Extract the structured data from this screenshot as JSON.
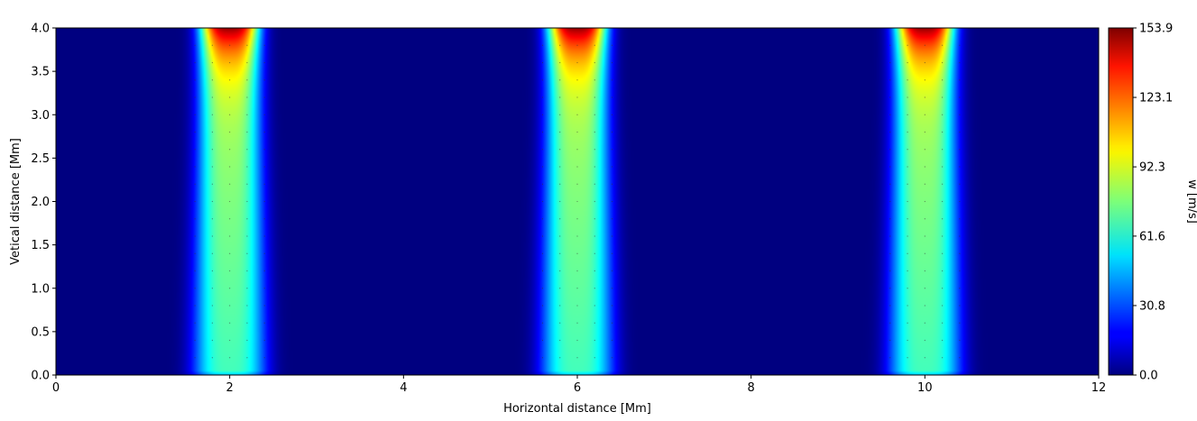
{
  "chart_data": {
    "type": "heatmap",
    "title": "",
    "xlabel": "Horizontal distance [Mm]",
    "ylabel": "Vetical distance [Mm]",
    "xlim": [
      0,
      12
    ],
    "ylim": [
      0,
      4
    ],
    "x_ticks": [
      "0",
      "2",
      "4",
      "6",
      "8",
      "10",
      "12"
    ],
    "y_ticks": [
      "0.0",
      "0.5",
      "1.0",
      "1.5",
      "2.0",
      "2.5",
      "3.0",
      "3.5",
      "4.0"
    ],
    "colormap": "jet",
    "colorbar": {
      "label": "w [m/s]",
      "range": [
        0.0,
        153.9
      ],
      "ticks": [
        "0.0",
        "30.8",
        "61.6",
        "92.3",
        "123.1",
        "153.9"
      ]
    },
    "plumes": [
      {
        "x_center": 2,
        "max_value": 153.9
      },
      {
        "x_center": 6,
        "max_value": 153.9
      },
      {
        "x_center": 10,
        "max_value": 153.9
      }
    ],
    "grid": false,
    "legend": "top-right, empty"
  }
}
